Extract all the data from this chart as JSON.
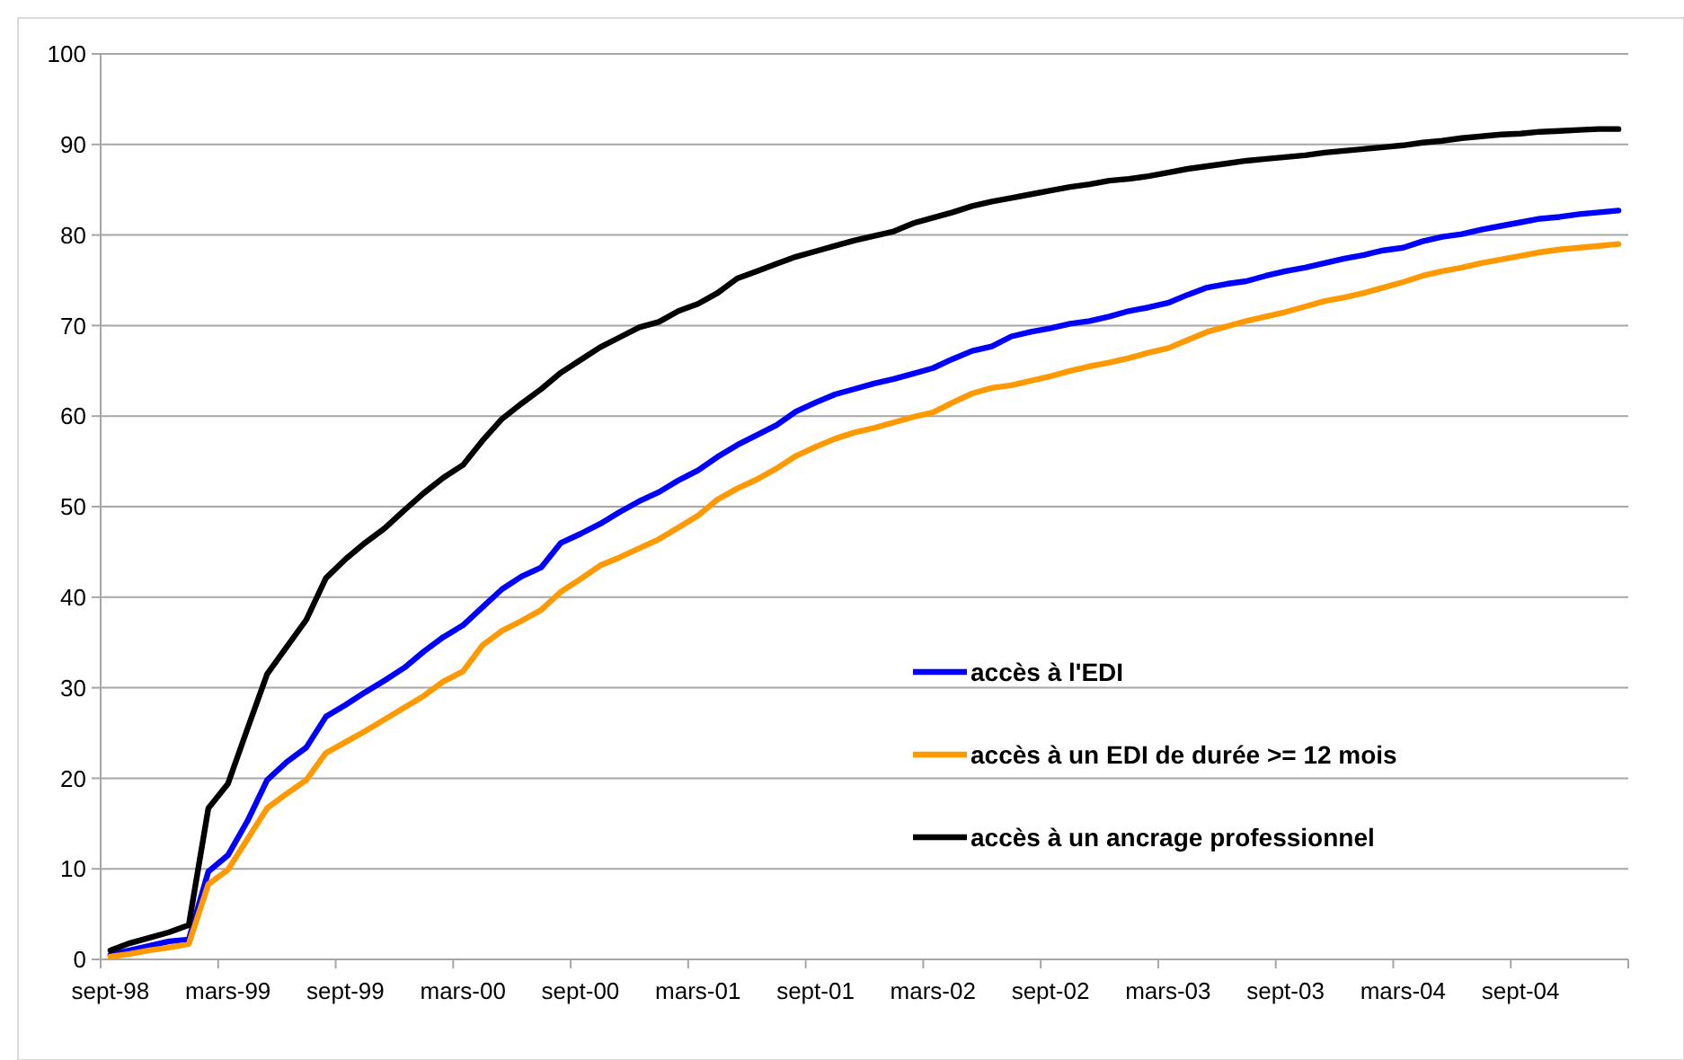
{
  "chart_data": {
    "type": "line",
    "categories": [
      "sept-98",
      null,
      null,
      null,
      null,
      null,
      "mars-99",
      null,
      null,
      null,
      null,
      null,
      "sept-99",
      null,
      null,
      null,
      null,
      null,
      "mars-00",
      null,
      null,
      null,
      null,
      null,
      "sept-00",
      null,
      null,
      null,
      null,
      null,
      "mars-01",
      null,
      null,
      null,
      null,
      null,
      "sept-01",
      null,
      null,
      null,
      null,
      null,
      "mars-02",
      null,
      null,
      null,
      null,
      null,
      "sept-02",
      null,
      null,
      null,
      null,
      null,
      "mars-03",
      null,
      null,
      null,
      null,
      null,
      "sept-03",
      null,
      null,
      null,
      null,
      null,
      "mars-04",
      null,
      null,
      null,
      null,
      null,
      "sept-04",
      null,
      null,
      null,
      null,
      null
    ],
    "ylim": [
      0,
      100
    ],
    "yticks": [
      0,
      10,
      20,
      30,
      40,
      50,
      60,
      70,
      80,
      90,
      100
    ],
    "grid": "y",
    "legend": "bottom right",
    "marker": "none",
    "line_style": "solid",
    "series": [
      {
        "name": "accès à l'EDI",
        "color": "#0000ff",
        "values": [
          0.5,
          1,
          1.5,
          2,
          2.2,
          9.7,
          11.5,
          15.3,
          19.8,
          21.8,
          23.4,
          26.8,
          28.1,
          29.5,
          30.8,
          32.2,
          34,
          35.6,
          36.9,
          38.9,
          40.9,
          42.3,
          43.3,
          46,
          47,
          48.1,
          49.4,
          50.6,
          51.6,
          52.9,
          54,
          55.5,
          56.8,
          57.9,
          59,
          60.5,
          61.5,
          62.4,
          63,
          63.6,
          64.1,
          64.7,
          65.3,
          66.3,
          67.2,
          67.7,
          68.8,
          69.3,
          69.7,
          70.2,
          70.5,
          71,
          71.6,
          72,
          72.5,
          73.4,
          74.2,
          74.6,
          74.9,
          75.5,
          76,
          76.4,
          76.9,
          77.4,
          77.8,
          78.3,
          78.6,
          79.3,
          79.8,
          80.1,
          80.6,
          81,
          81.4,
          81.8,
          82,
          82.3,
          82.5,
          82.7
        ]
      },
      {
        "name": "accès à un EDI de durée >= 12 mois",
        "color": "#ff9900",
        "values": [
          0.3,
          0.6,
          1,
          1.3,
          1.7,
          8.3,
          9.9,
          13.3,
          16.7,
          18.3,
          19.8,
          22.8,
          24,
          25.2,
          26.5,
          27.8,
          29.1,
          30.7,
          31.8,
          34.7,
          36.3,
          37.4,
          38.6,
          40.6,
          42,
          43.5,
          44.4,
          45.4,
          46.4,
          47.7,
          49,
          50.8,
          52,
          53,
          54.2,
          55.6,
          56.6,
          57.5,
          58.2,
          58.7,
          59.3,
          59.9,
          60.4,
          61.5,
          62.5,
          63.1,
          63.4,
          63.9,
          64.4,
          65,
          65.5,
          65.9,
          66.4,
          67,
          67.5,
          68.4,
          69.3,
          69.9,
          70.5,
          71,
          71.5,
          72.1,
          72.7,
          73.1,
          73.6,
          74.2,
          74.8,
          75.5,
          76,
          76.4,
          76.9,
          77.3,
          77.7,
          78.1,
          78.4,
          78.6,
          78.8,
          79
        ]
      },
      {
        "name": "accès à un ancrage professionnel",
        "color": "#000000",
        "values": [
          1,
          1.8,
          2.4,
          3,
          3.8,
          16.7,
          19.4,
          25.5,
          31.5,
          34.5,
          37.5,
          42.1,
          44.2,
          46,
          47.6,
          49.6,
          51.5,
          53.2,
          54.6,
          57.3,
          59.7,
          61.4,
          63,
          64.8,
          66.2,
          67.6,
          68.7,
          69.8,
          70.4,
          71.6,
          72.4,
          73.6,
          75.2,
          76,
          76.8,
          77.6,
          78.2,
          78.8,
          79.4,
          79.9,
          80.4,
          81.3,
          81.9,
          82.5,
          83.2,
          83.7,
          84.1,
          84.5,
          84.9,
          85.3,
          85.6,
          86,
          86.2,
          86.5,
          86.9,
          87.3,
          87.6,
          87.9,
          88.2,
          88.4,
          88.6,
          88.8,
          89.1,
          89.3,
          89.5,
          89.7,
          89.9,
          90.2,
          90.4,
          90.7,
          90.9,
          91.1,
          91.2,
          91.4,
          91.5,
          91.6,
          91.7,
          91.7
        ]
      }
    ]
  }
}
